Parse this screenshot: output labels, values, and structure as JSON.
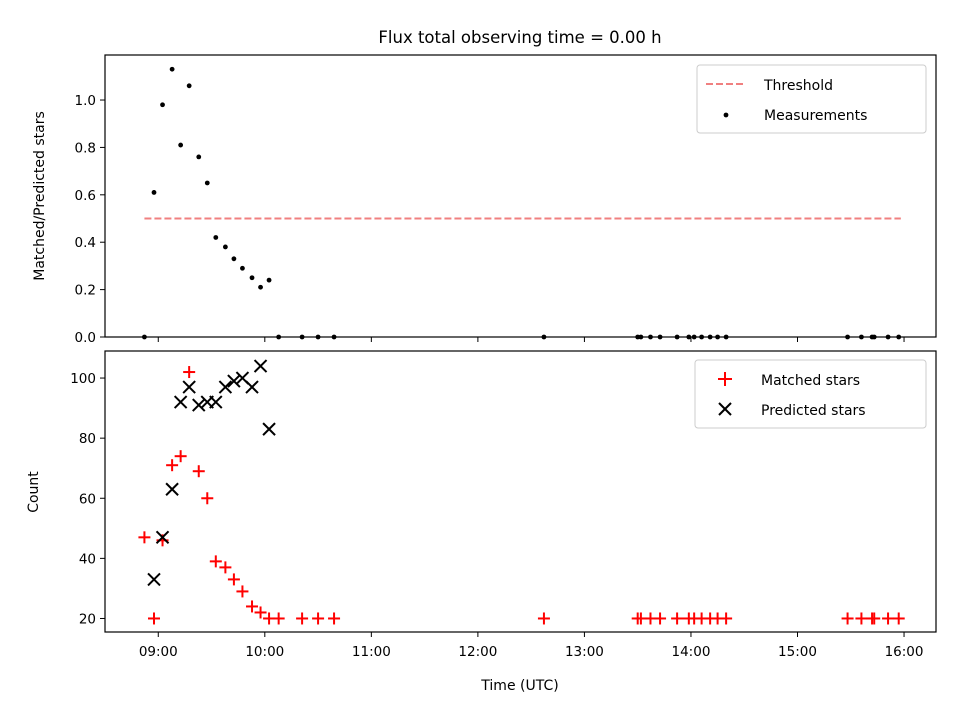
{
  "chart_data": [
    {
      "type": "scatter",
      "title": "Flux total observing time = 0.00 h",
      "xlabel": "",
      "ylabel": "Matched/Predicted stars",
      "xlim": [
        8.5,
        16.3
      ],
      "ylim": [
        0,
        1.19
      ],
      "yticks": [
        0.0,
        0.2,
        0.4,
        0.6,
        0.8,
        1.0
      ],
      "ytick_labels": [
        "0.0",
        "0.2",
        "0.4",
        "0.6",
        "0.8",
        "1.0"
      ],
      "xticks": [
        9,
        10,
        11,
        12,
        13,
        14,
        15,
        16
      ],
      "legend_position": "top-right",
      "series": [
        {
          "name": "Threshold",
          "kind": "line",
          "style": "dashed",
          "color": "#f08080",
          "x": [
            8.87,
            15.97
          ],
          "y": [
            0.5,
            0.5
          ]
        },
        {
          "name": "Measurements",
          "kind": "scatter",
          "marker": "dot",
          "color": "#000000",
          "x": [
            8.87,
            8.96,
            9.04,
            9.13,
            9.21,
            9.29,
            9.38,
            9.46,
            9.54,
            9.63,
            9.71,
            9.79,
            9.88,
            9.96,
            10.04,
            10.13,
            10.35,
            10.5,
            10.65,
            12.62,
            13.5,
            13.53,
            13.62,
            13.71,
            13.87,
            13.98,
            14.03,
            14.1,
            14.18,
            14.25,
            14.33,
            15.47,
            15.6,
            15.7,
            15.72,
            15.85,
            15.95
          ],
          "y": [
            0.0,
            0.61,
            0.98,
            1.13,
            0.81,
            1.06,
            0.76,
            0.65,
            0.42,
            0.38,
            0.33,
            0.29,
            0.25,
            0.21,
            0.24,
            0.0,
            0.0,
            0.0,
            0.0,
            0.0,
            0.0,
            0.0,
            0.0,
            0.0,
            0.0,
            0.0,
            0.0,
            0.0,
            0.0,
            0.0,
            0.0,
            0.0,
            0.0,
            0.0,
            0.0,
            0.0,
            0.0
          ]
        }
      ]
    },
    {
      "type": "scatter",
      "title": "",
      "xlabel": "Time (UTC)",
      "ylabel": "Count",
      "xlim": [
        8.5,
        16.3
      ],
      "ylim": [
        15.5,
        109
      ],
      "yticks": [
        20,
        40,
        60,
        80,
        100
      ],
      "ytick_labels": [
        "20",
        "40",
        "60",
        "80",
        "100"
      ],
      "xticks": [
        9,
        10,
        11,
        12,
        13,
        14,
        15,
        16
      ],
      "xtick_labels": [
        "09:00",
        "10:00",
        "11:00",
        "12:00",
        "13:00",
        "14:00",
        "15:00",
        "16:00"
      ],
      "legend_position": "top-right",
      "series": [
        {
          "name": "Matched stars",
          "kind": "scatter",
          "marker": "plus",
          "color": "#ff0000",
          "x": [
            8.87,
            8.96,
            9.04,
            9.13,
            9.21,
            9.29,
            9.38,
            9.46,
            9.54,
            9.63,
            9.71,
            9.79,
            9.88,
            9.96,
            10.04,
            10.13,
            10.35,
            10.5,
            10.65,
            12.62,
            13.5,
            13.53,
            13.62,
            13.71,
            13.87,
            13.98,
            14.03,
            14.1,
            14.18,
            14.25,
            14.33,
            15.47,
            15.6,
            15.7,
            15.72,
            15.85,
            15.95
          ],
          "y": [
            47,
            20,
            46,
            71,
            74,
            102,
            69,
            60,
            39,
            37,
            33,
            29,
            24,
            22,
            20,
            20,
            20,
            20,
            20,
            20,
            20,
            20,
            20,
            20,
            20,
            20,
            20,
            20,
            20,
            20,
            20,
            20,
            20,
            20,
            20,
            20,
            20
          ]
        },
        {
          "name": "Predicted stars",
          "kind": "scatter",
          "marker": "x",
          "color": "#000000",
          "x": [
            8.96,
            9.04,
            9.13,
            9.21,
            9.29,
            9.38,
            9.46,
            9.54,
            9.63,
            9.71,
            9.79,
            9.88,
            9.96,
            10.04
          ],
          "y": [
            33,
            47,
            63,
            92,
            97,
            91,
            92,
            92,
            97,
            99,
            100,
            97,
            104,
            83
          ]
        }
      ]
    }
  ]
}
